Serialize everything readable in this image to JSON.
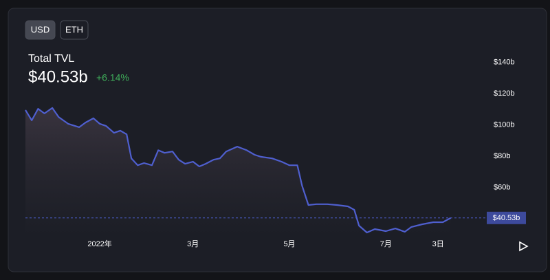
{
  "controls": {
    "currencies": [
      "USD",
      "ETH"
    ],
    "active": 0
  },
  "chart_data": {
    "type": "area",
    "title": "Total TVL",
    "current": {
      "value": 40.53,
      "label": "$40.53b"
    },
    "change": "+6.14%",
    "color": "#4f5fcf",
    "x": [
      -47,
      -43,
      -39,
      -35,
      -30,
      -26,
      -20,
      -13,
      -9,
      -4,
      0,
      4,
      9,
      13,
      17,
      20,
      24,
      28,
      33,
      37,
      41,
      46,
      50,
      54,
      59,
      63,
      67,
      72,
      76,
      80,
      87,
      93,
      98,
      102,
      109,
      115,
      120,
      125,
      128,
      132,
      137,
      144,
      150,
      157,
      161,
      164,
      169,
      174,
      181,
      187,
      193,
      197,
      204,
      211,
      217,
      222
    ],
    "values": [
      109.5,
      102.9,
      110.3,
      107.3,
      110.8,
      105,
      100.7,
      98.5,
      101.5,
      104.2,
      100.7,
      99.3,
      94.9,
      96.3,
      94,
      78.6,
      74.2,
      75.6,
      74.2,
      83.8,
      82.1,
      83,
      77.7,
      75.1,
      76.5,
      73.4,
      75.1,
      77.7,
      78.6,
      83,
      86.1,
      83.8,
      80.9,
      79.6,
      78.6,
      76.5,
      74.2,
      74.2,
      61.1,
      48.8,
      49.3,
      49.3,
      48.8,
      47.9,
      45.7,
      35.6,
      31.2,
      33.4,
      32.1,
      33.8,
      31.7,
      34.7,
      36.5,
      37.8,
      37.8,
      40.53
    ],
    "xlim": [
      -47,
      243.5
    ],
    "xticks": [
      {
        "value": 0,
        "label": "2022年"
      },
      {
        "value": 59,
        "label": "3月"
      },
      {
        "value": 120,
        "label": "5月"
      },
      {
        "value": 181,
        "label": "7月"
      },
      {
        "value": 214,
        "label": "3日"
      }
    ],
    "ylim": [
      30,
      150
    ],
    "yticks": [
      {
        "value": 60,
        "label": "$60b"
      },
      {
        "value": 80,
        "label": "$80b"
      },
      {
        "value": 100,
        "label": "$100b"
      },
      {
        "value": 120,
        "label": "$120b"
      },
      {
        "value": 140,
        "label": "$140b"
      }
    ]
  }
}
